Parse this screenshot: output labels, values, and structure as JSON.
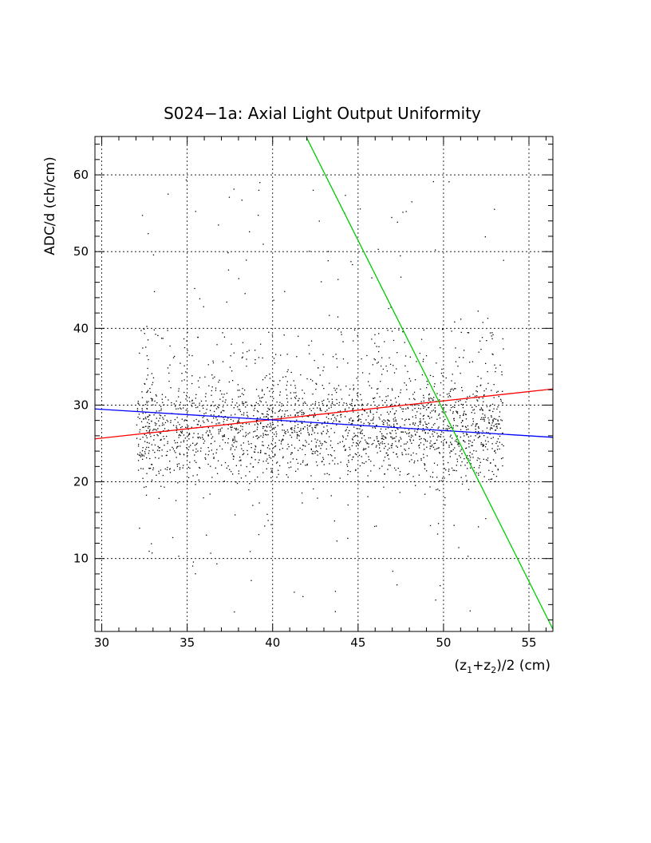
{
  "chart_data": {
    "type": "scatter",
    "title": "S024−1a",
    "title_suffix": ": Axial Light Output Uniformity",
    "xlabel_prefix": "(z",
    "xlabel_sub1": "1",
    "xlabel_mid": "+z",
    "xlabel_sub2": "2",
    "xlabel_suffix": ")/2 (cm)",
    "ylabel": "ADC/d (ch/cm)",
    "xlim": [
      29.6,
      56.4
    ],
    "ylim": [
      0.5,
      65
    ],
    "x_ticks": [
      30,
      35,
      40,
      45,
      50,
      55
    ],
    "x_tick_labels": [
      "30",
      "35",
      "40",
      "45",
      "50",
      "55"
    ],
    "y_ticks": [
      10,
      20,
      30,
      40,
      50,
      60
    ],
    "y_tick_labels": [
      "10",
      "20",
      "30",
      "40",
      "50",
      "60"
    ],
    "grid": true,
    "lines": [
      {
        "color": "#ff0000",
        "x": [
          29.6,
          56.4
        ],
        "y": [
          25.6,
          32.1
        ]
      },
      {
        "color": "#0000ff",
        "x": [
          29.6,
          56.4
        ],
        "y": [
          29.5,
          25.8
        ]
      },
      {
        "color": "#00cc00",
        "x": [
          42.0,
          56.4
        ],
        "y": [
          64.8,
          0.8
        ]
      }
    ],
    "scatter": {
      "color": "#000000",
      "n_points": 2400,
      "x_range": [
        32.0,
        53.5
      ],
      "core_y_center": 27.0,
      "core_y_spread": 3.0,
      "outlier_y_range": [
        3,
        60
      ]
    }
  }
}
